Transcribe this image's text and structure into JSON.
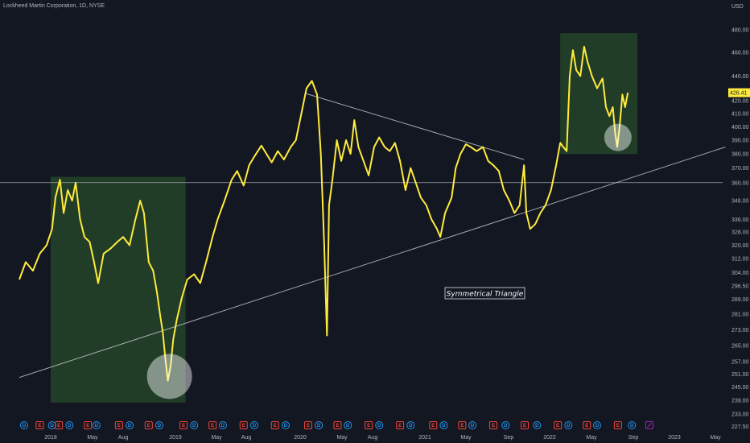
{
  "header": {
    "title": "Lockheed Martin Corporation, 1D, NYSE",
    "currency": "USD"
  },
  "annotation": {
    "pattern_label": "Symmetrical Triangle"
  },
  "colors": {
    "background": "#131722",
    "price_line": "#ffeb3b",
    "zone_fill": "#2e5c2e",
    "trendline": "#b2b5be",
    "current_price_bg": "#ffeb3b",
    "earnings_marker": "#f44336",
    "dividend_marker": "#2196f3",
    "split_marker": "#9c27b0"
  },
  "chart_data": {
    "type": "line",
    "title": "",
    "xlabel": "",
    "ylabel": "",
    "ylim": [
      225,
      500
    ],
    "y_scale": "log",
    "grid": false,
    "x_tick_labels": [
      "2018",
      "May",
      "Aug",
      "2019",
      "May",
      "Aug",
      "2020",
      "May",
      "Aug",
      "2021",
      "May",
      "Sep",
      "2022",
      "May",
      "Sep",
      "2023",
      "May"
    ],
    "y_tick_labels": [
      "480.00",
      "460.00",
      "440.00",
      "420.00",
      "410.00",
      "400.00",
      "390.00",
      "380.00",
      "370.00",
      "360.00",
      "348.00",
      "336.00",
      "328.00",
      "320.00",
      "312.00",
      "304.00",
      "296.50",
      "289.00",
      "281.00",
      "273.00",
      "265.00",
      "257.00",
      "251.00",
      "245.00",
      "239.00",
      "233.00",
      "227.50"
    ],
    "current_price": "426.41",
    "series": [
      {
        "name": "",
        "points": [
          [
            "2017-10-01",
            300
          ],
          [
            "2017-10-20",
            310
          ],
          [
            "2017-11-10",
            305
          ],
          [
            "2017-11-30",
            315
          ],
          [
            "2017-12-20",
            320
          ],
          [
            "2018-01-05",
            330
          ],
          [
            "2018-01-15",
            350
          ],
          [
            "2018-01-28",
            362
          ],
          [
            "2018-02-08",
            340
          ],
          [
            "2018-02-20",
            355
          ],
          [
            "2018-03-05",
            348
          ],
          [
            "2018-03-15",
            360
          ],
          [
            "2018-03-28",
            336
          ],
          [
            "2018-04-10",
            325
          ],
          [
            "2018-04-25",
            322
          ],
          [
            "2018-05-08",
            310
          ],
          [
            "2018-05-20",
            298
          ],
          [
            "2018-06-05",
            315
          ],
          [
            "2018-06-25",
            318
          ],
          [
            "2018-07-15",
            322
          ],
          [
            "2018-08-01",
            325
          ],
          [
            "2018-08-20",
            320
          ],
          [
            "2018-09-05",
            335
          ],
          [
            "2018-09-20",
            348
          ],
          [
            "2018-10-01",
            340
          ],
          [
            "2018-10-15",
            310
          ],
          [
            "2018-10-28",
            305
          ],
          [
            "2018-11-08",
            293
          ],
          [
            "2018-11-18",
            280
          ],
          [
            "2018-11-25",
            272
          ],
          [
            "2018-12-03",
            258
          ],
          [
            "2018-12-10",
            248
          ],
          [
            "2018-12-18",
            255
          ],
          [
            "2018-12-26",
            268
          ],
          [
            "2019-01-05",
            278
          ],
          [
            "2019-01-20",
            290
          ],
          [
            "2019-02-05",
            300
          ],
          [
            "2019-02-25",
            303
          ],
          [
            "2019-03-15",
            298
          ],
          [
            "2019-04-01",
            310
          ],
          [
            "2019-04-20",
            325
          ],
          [
            "2019-05-05",
            336
          ],
          [
            "2019-05-25",
            348
          ],
          [
            "2019-06-15",
            362
          ],
          [
            "2019-07-01",
            368
          ],
          [
            "2019-07-20",
            358
          ],
          [
            "2019-08-05",
            372
          ],
          [
            "2019-08-20",
            378
          ],
          [
            "2019-09-10",
            386
          ],
          [
            "2019-09-25",
            380
          ],
          [
            "2019-10-10",
            374
          ],
          [
            "2019-10-28",
            382
          ],
          [
            "2019-11-15",
            376
          ],
          [
            "2019-12-05",
            385
          ],
          [
            "2019-12-20",
            390
          ],
          [
            "2020-01-05",
            410
          ],
          [
            "2020-01-20",
            430
          ],
          [
            "2020-02-05",
            436
          ],
          [
            "2020-02-20",
            425
          ],
          [
            "2020-03-02",
            380
          ],
          [
            "2020-03-12",
            320
          ],
          [
            "2020-03-20",
            270
          ],
          [
            "2020-03-26",
            345
          ],
          [
            "2020-04-05",
            362
          ],
          [
            "2020-04-18",
            390
          ],
          [
            "2020-05-01",
            375
          ],
          [
            "2020-05-15",
            390
          ],
          [
            "2020-05-28",
            380
          ],
          [
            "2020-06-08",
            405
          ],
          [
            "2020-06-20",
            385
          ],
          [
            "2020-07-05",
            375
          ],
          [
            "2020-07-20",
            365
          ],
          [
            "2020-08-05",
            385
          ],
          [
            "2020-08-20",
            392
          ],
          [
            "2020-09-05",
            385
          ],
          [
            "2020-09-20",
            382
          ],
          [
            "2020-10-05",
            388
          ],
          [
            "2020-10-20",
            375
          ],
          [
            "2020-11-05",
            355
          ],
          [
            "2020-11-20",
            370
          ],
          [
            "2020-12-05",
            360
          ],
          [
            "2020-12-20",
            350
          ],
          [
            "2021-01-05",
            345
          ],
          [
            "2021-01-20",
            336
          ],
          [
            "2021-02-05",
            330
          ],
          [
            "2021-02-15",
            325
          ],
          [
            "2021-03-01",
            340
          ],
          [
            "2021-03-20",
            350
          ],
          [
            "2021-04-01",
            370
          ],
          [
            "2021-04-15",
            380
          ],
          [
            "2021-05-01",
            387
          ],
          [
            "2021-05-15",
            385
          ],
          [
            "2021-06-01",
            382
          ],
          [
            "2021-06-20",
            385
          ],
          [
            "2021-07-05",
            375
          ],
          [
            "2021-07-20",
            372
          ],
          [
            "2021-08-05",
            368
          ],
          [
            "2021-08-20",
            355
          ],
          [
            "2021-09-05",
            348
          ],
          [
            "2021-09-20",
            340
          ],
          [
            "2021-10-05",
            345
          ],
          [
            "2021-10-18",
            372
          ],
          [
            "2021-10-25",
            340
          ],
          [
            "2021-11-05",
            330
          ],
          [
            "2021-11-20",
            333
          ],
          [
            "2021-12-05",
            340
          ],
          [
            "2021-12-20",
            345
          ],
          [
            "2022-01-05",
            355
          ],
          [
            "2022-01-20",
            372
          ],
          [
            "2022-02-01",
            388
          ],
          [
            "2022-02-10",
            385
          ],
          [
            "2022-02-20",
            382
          ],
          [
            "2022-03-01",
            440
          ],
          [
            "2022-03-10",
            462
          ],
          [
            "2022-03-20",
            445
          ],
          [
            "2022-04-01",
            440
          ],
          [
            "2022-04-12",
            465
          ],
          [
            "2022-04-22",
            452
          ],
          [
            "2022-05-05",
            440
          ],
          [
            "2022-05-20",
            430
          ],
          [
            "2022-06-05",
            438
          ],
          [
            "2022-06-15",
            415
          ],
          [
            "2022-06-25",
            408
          ],
          [
            "2022-07-05",
            415
          ],
          [
            "2022-07-12",
            395
          ],
          [
            "2022-07-18",
            385
          ],
          [
            "2022-07-25",
            400
          ],
          [
            "2022-08-02",
            425
          ],
          [
            "2022-08-10",
            415
          ],
          [
            "2022-08-18",
            426.41
          ]
        ]
      }
    ],
    "overlays": {
      "horizontal_line": 360,
      "trendlines": [
        {
          "kind": "support",
          "from": [
            "2017-10-01",
            249.5
          ],
          "to": [
            "2023-05-31",
            385
          ]
        },
        {
          "kind": "resistance",
          "from": [
            "2020-01-15",
            426
          ],
          "to": [
            "2021-10-18",
            376
          ]
        }
      ],
      "zones": [
        {
          "from": "2018-01-01",
          "to": "2019-01-31",
          "y_from": 238,
          "y_to": 364
        },
        {
          "from": "2022-02-01",
          "to": "2022-09-15",
          "y_from": 380,
          "y_to": 477
        }
      ],
      "circles": [
        {
          "date": "2018-12-15",
          "value": 250
        },
        {
          "date": "2022-07-20",
          "value": 392
        }
      ]
    },
    "events": [
      {
        "date": "2017-10-15",
        "kind": "dividend",
        "label": "D"
      },
      {
        "date": "2017-11-30",
        "kind": "earnings",
        "label": "E"
      },
      {
        "date": "2018-01-05",
        "kind": "dividend",
        "label": "D"
      },
      {
        "date": "2018-01-25",
        "kind": "earnings",
        "label": "E"
      },
      {
        "date": "2018-02-25",
        "kind": "dividend",
        "label": "D"
      },
      {
        "date": "2018-04-20",
        "kind": "earnings",
        "label": "E"
      },
      {
        "date": "2018-05-15",
        "kind": "dividend",
        "label": "D"
      },
      {
        "date": "2018-07-20",
        "kind": "earnings",
        "label": "E"
      },
      {
        "date": "2018-08-20",
        "kind": "dividend",
        "label": "D"
      },
      {
        "date": "2018-10-15",
        "kind": "earnings",
        "label": "E"
      },
      {
        "date": "2018-11-15",
        "kind": "dividend",
        "label": "D"
      },
      {
        "date": "2019-01-25",
        "kind": "earnings",
        "label": "E"
      },
      {
        "date": "2019-02-25",
        "kind": "dividend",
        "label": "D"
      },
      {
        "date": "2019-04-20",
        "kind": "earnings",
        "label": "E"
      },
      {
        "date": "2019-05-20",
        "kind": "dividend",
        "label": "D"
      },
      {
        "date": "2019-07-20",
        "kind": "earnings",
        "label": "E"
      },
      {
        "date": "2019-08-20",
        "kind": "dividend",
        "label": "D"
      },
      {
        "date": "2019-10-20",
        "kind": "earnings",
        "label": "E"
      },
      {
        "date": "2019-11-20",
        "kind": "dividend",
        "label": "D"
      },
      {
        "date": "2020-01-25",
        "kind": "earnings",
        "label": "E"
      },
      {
        "date": "2020-02-25",
        "kind": "dividend",
        "label": "D"
      },
      {
        "date": "2020-04-20",
        "kind": "earnings",
        "label": "E"
      },
      {
        "date": "2020-05-20",
        "kind": "dividend",
        "label": "D"
      },
      {
        "date": "2020-07-20",
        "kind": "earnings",
        "label": "E"
      },
      {
        "date": "2020-08-20",
        "kind": "dividend",
        "label": "D"
      },
      {
        "date": "2020-10-20",
        "kind": "earnings",
        "label": "E"
      },
      {
        "date": "2020-11-20",
        "kind": "dividend",
        "label": "D"
      },
      {
        "date": "2021-01-25",
        "kind": "earnings",
        "label": "E"
      },
      {
        "date": "2021-02-25",
        "kind": "dividend",
        "label": "D"
      },
      {
        "date": "2021-04-20",
        "kind": "earnings",
        "label": "E"
      },
      {
        "date": "2021-05-20",
        "kind": "dividend",
        "label": "D"
      },
      {
        "date": "2021-07-20",
        "kind": "earnings",
        "label": "E"
      },
      {
        "date": "2021-08-25",
        "kind": "dividend",
        "label": "D"
      },
      {
        "date": "2021-10-20",
        "kind": "earnings",
        "label": "E"
      },
      {
        "date": "2021-11-25",
        "kind": "dividend",
        "label": "D"
      },
      {
        "date": "2022-01-25",
        "kind": "earnings",
        "label": "E"
      },
      {
        "date": "2022-02-25",
        "kind": "dividend",
        "label": "D"
      },
      {
        "date": "2022-04-20",
        "kind": "earnings",
        "label": "E"
      },
      {
        "date": "2022-05-20",
        "kind": "dividend",
        "label": "D"
      },
      {
        "date": "2022-07-20",
        "kind": "earnings",
        "label": "E"
      },
      {
        "date": "2022-08-30",
        "kind": "dividend",
        "label": "D"
      },
      {
        "date": "2022-10-20",
        "kind": "split",
        "label": ""
      }
    ]
  }
}
